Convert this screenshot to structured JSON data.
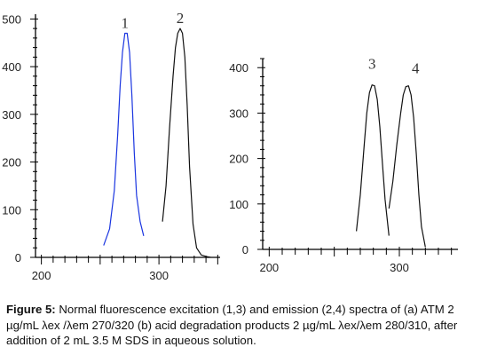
{
  "caption": {
    "label": "Figure 5:",
    "text": "Normal fluorescence excitation (1,3) and emission (2,4) spectra of (a) ATM 2 µg/mL λex /λem 270/320 (b) acid degradation products 2 µg/mL λex/λem 280/310, after addition of 2 mL 3.5 M SDS in aqueous solution."
  },
  "chart_data": [
    {
      "type": "line",
      "panel": "a",
      "title": "",
      "xlabel": "",
      "ylabel": "",
      "xlim": [
        195,
        352
      ],
      "ylim": [
        0,
        510
      ],
      "x_ticks": [
        "200",
        "300"
      ],
      "y_ticks": [
        "0",
        "100",
        "200",
        "300",
        "400",
        "500"
      ],
      "series": [
        {
          "label": "1",
          "color": "#1a35e0",
          "x": [
            253,
            258,
            262,
            265,
            267,
            269,
            271,
            273,
            275,
            277,
            279,
            281,
            284,
            287
          ],
          "y": [
            25,
            60,
            140,
            260,
            360,
            430,
            470,
            470,
            430,
            340,
            220,
            130,
            75,
            45
          ]
        },
        {
          "label": "2",
          "color": "#111111",
          "x": [
            303,
            306,
            309,
            312,
            314,
            316,
            318,
            320,
            322,
            324,
            326,
            329,
            332,
            336,
            340,
            344
          ],
          "y": [
            75,
            150,
            270,
            380,
            440,
            470,
            480,
            470,
            420,
            320,
            190,
            70,
            20,
            5,
            2,
            0
          ]
        }
      ]
    },
    {
      "type": "line",
      "panel": "b",
      "title": "",
      "xlabel": "",
      "ylabel": "",
      "xlim": [
        195,
        345
      ],
      "ylim": [
        0,
        420
      ],
      "x_ticks": [
        "200",
        "300"
      ],
      "y_ticks": [
        "0",
        "100",
        "200",
        "300",
        "400"
      ],
      "series": [
        {
          "label": "3",
          "color": "#111111",
          "x": [
            267,
            270,
            273,
            275,
            277,
            279,
            281,
            283,
            285,
            287,
            289,
            292
          ],
          "y": [
            40,
            120,
            230,
            300,
            345,
            362,
            360,
            330,
            270,
            190,
            110,
            30
          ]
        },
        {
          "label": "4",
          "color": "#111111",
          "x": [
            292,
            295,
            298,
            301,
            303,
            305,
            307,
            309,
            311,
            313,
            315,
            317,
            320
          ],
          "y": [
            90,
            150,
            230,
            300,
            340,
            358,
            360,
            340,
            290,
            210,
            120,
            50,
            5
          ]
        }
      ]
    }
  ]
}
